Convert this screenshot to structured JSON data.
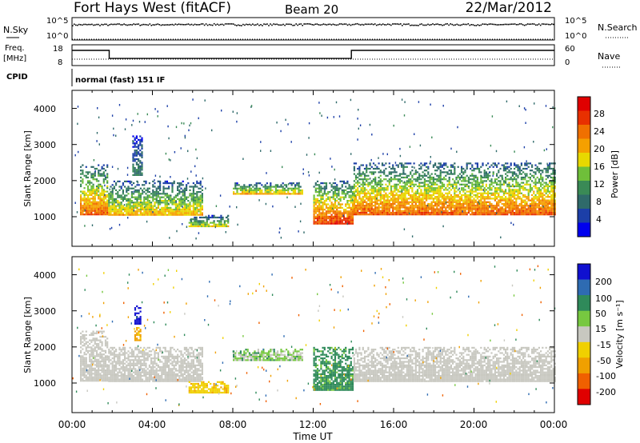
{
  "header": {
    "station": "Fort Hays West (fitACF)",
    "beam": "Beam 20",
    "date": "22/Mar/2012"
  },
  "noise_panel": {
    "left_label": "N.Sky",
    "right_label": "N.Search",
    "left_ticks": [
      "10^5",
      "10^0"
    ],
    "right_ticks": [
      "10^5",
      "10^0"
    ]
  },
  "freq_panel": {
    "left_label_1": "Freq.",
    "left_label_2": "[MHz]",
    "right_label": "Nave",
    "left_ticks": [
      "18",
      "8"
    ],
    "right_ticks": [
      "60",
      "0"
    ]
  },
  "cpid": {
    "label": "CPID",
    "mode": "normal (fast) 151 IF"
  },
  "colors": {
    "power": [
      "#0000ee",
      "#1c3fa8",
      "#2f6a6a",
      "#3a8a56",
      "#6fbf3a",
      "#e8d800",
      "#f5a000",
      "#f07000",
      "#e83000",
      "#e00000"
    ],
    "velocity": [
      "#1010d0",
      "#2e6bb2",
      "#2f8a5a",
      "#77c840",
      "#c8c8c0",
      "#f0d000",
      "#f0a000",
      "#f06000",
      "#e00000"
    ]
  },
  "chart_data": [
    {
      "type": "line",
      "panel": "noise",
      "xlabel": "",
      "ylabel": "N.Sky / N.Search",
      "yscale": "log",
      "ylim": [
        1,
        100000
      ],
      "xlim": [
        0,
        24
      ],
      "series": [
        {
          "name": "N.Sky",
          "x": [
            0,
            2,
            4,
            6,
            8,
            10,
            12,
            14,
            16,
            18,
            20,
            22,
            24
          ],
          "values": [
            4000,
            4500,
            4200,
            4800,
            4300,
            4600,
            4400,
            5000,
            4500,
            4700,
            4300,
            4600,
            4400
          ]
        },
        {
          "name": "N.Search",
          "x": [
            0,
            24
          ],
          "values": [
            1,
            1
          ]
        }
      ]
    },
    {
      "type": "line",
      "panel": "frequency",
      "xlabel": "",
      "ylabel": "Freq. [MHz]",
      "ylim": [
        8,
        18
      ],
      "xlim": [
        0,
        24
      ],
      "series": [
        {
          "name": "Freq.",
          "x": [
            0,
            1.85,
            1.85,
            13.9,
            13.9,
            24
          ],
          "values": [
            15.5,
            15.5,
            11.3,
            11.3,
            15.5,
            15.5
          ]
        },
        {
          "name": "Nave",
          "x": [
            0,
            24
          ],
          "values": [
            10,
            10
          ]
        }
      ]
    },
    {
      "type": "heatmap",
      "panel": "power",
      "xlabel": "",
      "ylabel": "Slant Range [km]",
      "ylim": [
        180,
        4500
      ],
      "xlim": [
        0,
        24
      ],
      "y_ticks": [
        1000,
        2000,
        3000,
        4000
      ],
      "colorbar": {
        "label": "Power [dB]",
        "min": 0,
        "max": 32,
        "ticks": [
          4,
          8,
          12,
          16,
          20,
          24,
          28
        ]
      },
      "regions": [
        {
          "t": [
            0.4,
            1.8
          ],
          "range": [
            1050,
            2450
          ],
          "level": 18
        },
        {
          "t": [
            1.8,
            6.5
          ],
          "range": [
            1050,
            2000
          ],
          "level": 14
        },
        {
          "t": [
            3.0,
            3.5
          ],
          "range": [
            2150,
            3250
          ],
          "level": 6
        },
        {
          "t": [
            5.8,
            7.8
          ],
          "range": [
            750,
            1050
          ],
          "level": 12
        },
        {
          "t": [
            8.0,
            11.5
          ],
          "range": [
            1650,
            1950
          ],
          "level": 14
        },
        {
          "t": [
            12.0,
            14.0
          ],
          "range": [
            800,
            2000
          ],
          "level": 20
        },
        {
          "t": [
            14.0,
            24.0
          ],
          "range": [
            1050,
            2500
          ],
          "level": 18
        }
      ]
    },
    {
      "type": "heatmap",
      "panel": "velocity",
      "xlabel": "Time UT",
      "ylabel": "Slant Range [km]",
      "ylim": [
        180,
        4500
      ],
      "xlim": [
        0,
        24
      ],
      "y_ticks": [
        1000,
        2000,
        3000,
        4000
      ],
      "x_tick_labels": [
        "00:00",
        "04:00",
        "08:00",
        "12:00",
        "16:00",
        "20:00",
        "00:00"
      ],
      "colorbar": {
        "label": "Velocity [m s^-1]",
        "min": -250,
        "max": 250,
        "ticks": [
          200,
          100,
          50,
          15,
          -15,
          -50,
          -100,
          -200
        ]
      },
      "regions": [
        {
          "t": [
            0.4,
            1.8
          ],
          "range": [
            1050,
            2450
          ],
          "level": 0
        },
        {
          "t": [
            1.8,
            6.5
          ],
          "range": [
            1050,
            2000
          ],
          "level": 0
        },
        {
          "t": [
            3.1,
            3.4
          ],
          "range": [
            2650,
            3150
          ],
          "level": 220
        },
        {
          "t": [
            3.1,
            3.4
          ],
          "range": [
            2200,
            2550
          ],
          "level": -60
        },
        {
          "t": [
            5.8,
            7.8
          ],
          "range": [
            750,
            1050
          ],
          "level": -40
        },
        {
          "t": [
            8.0,
            11.5
          ],
          "range": [
            1650,
            1950
          ],
          "level": 20
        },
        {
          "t": [
            12.0,
            14.0
          ],
          "range": [
            800,
            2000
          ],
          "level": 40
        },
        {
          "t": [
            14.0,
            24.0
          ],
          "range": [
            1050,
            2000
          ],
          "level": 0
        }
      ]
    }
  ],
  "axes": {
    "time_ticks": [
      "00:00",
      "04:00",
      "08:00",
      "12:00",
      "16:00",
      "20:00",
      "00:00"
    ],
    "xlabel": "Time UT",
    "range_ticks": [
      "1000",
      "2000",
      "3000",
      "4000"
    ],
    "ylabel": "Slant Range [km]"
  },
  "power_bar": {
    "label": "Power [dB]",
    "ticks": [
      "28",
      "24",
      "20",
      "16",
      "12",
      "8",
      "4"
    ]
  },
  "velocity_bar": {
    "label": "Velocity [m s⁻¹]",
    "ticks": [
      "200",
      "100",
      "50",
      "15",
      "-15",
      "-50",
      "-100",
      "-200"
    ]
  }
}
